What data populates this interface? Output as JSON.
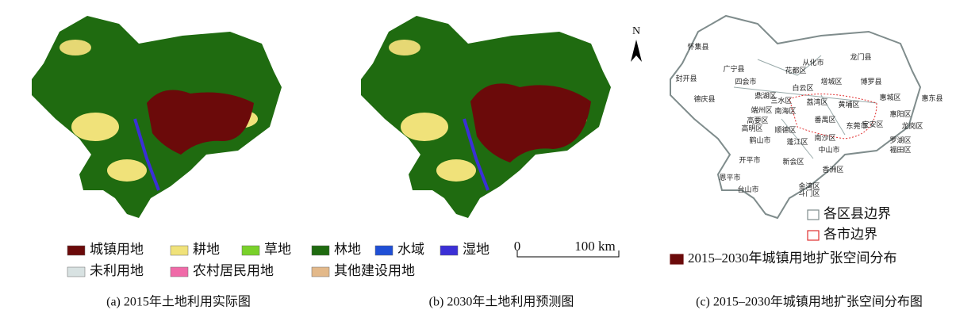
{
  "legend": {
    "items": [
      {
        "label": "城镇用地",
        "color": "#6b0a0a"
      },
      {
        "label": "耕地",
        "color": "#f0e27a"
      },
      {
        "label": "草地",
        "color": "#79d12a"
      },
      {
        "label": "林地",
        "color": "#1f6b10"
      },
      {
        "label": "水域",
        "color": "#1f4fd6"
      },
      {
        "label": "湿地",
        "color": "#3b2fd6"
      },
      {
        "label": "未利用地",
        "color": "#d8e2e2"
      },
      {
        "label": "农村居民用地",
        "color": "#f06aa8"
      },
      {
        "label": "其他建设用地",
        "color": "#e3b98a"
      }
    ]
  },
  "scale_bar": {
    "start": "0",
    "end": "100 km"
  },
  "north_arrow": "N",
  "panel_c": {
    "district_labels": [
      "怀集县",
      "广宁县",
      "四会市",
      "封开县",
      "德庆县",
      "从化市",
      "龙门县",
      "博罗县",
      "惠东县",
      "惠城区",
      "增城区",
      "花都区",
      "白云区",
      "鼎湖区",
      "高要区",
      "端州区",
      "三水区",
      "南海区",
      "荔湾区",
      "黄埔区",
      "番禺区",
      "东莞市",
      "惠阳区",
      "高明区",
      "顺德区",
      "南沙区",
      "宝安区",
      "龙岗区",
      "鹤山市",
      "蓬江区",
      "中山市",
      "罗湖区",
      "福田区",
      "新会区",
      "开平市",
      "斗门区",
      "香洲区",
      "恩平市",
      "台山市",
      "金湾区"
    ],
    "legend": [
      {
        "label": "各区县边界",
        "color": "#7f8c8c"
      },
      {
        "label": "各市边界",
        "color": "#e03030"
      },
      {
        "label": "2015–2030年城镇用地扩张空间分布",
        "color": "#6b0a0a"
      }
    ]
  },
  "captions": [
    "(a) 2015年土地利用实际图",
    "(b) 2030年土地利用预测图",
    "(c) 2015–2030年城镇用地扩张空间分布图"
  ]
}
